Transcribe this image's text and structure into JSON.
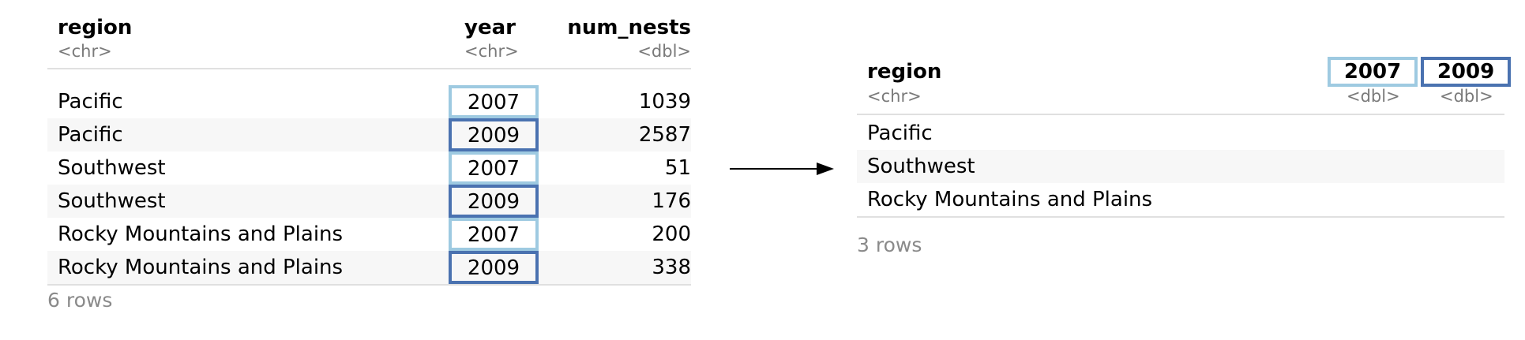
{
  "colors": {
    "light_box": "#9ecae1",
    "dark_box": "#4a72b0",
    "arrow": "#000000"
  },
  "left_table": {
    "columns": [
      {
        "name": "region",
        "type": "<chr>"
      },
      {
        "name": "year",
        "type": "<chr>"
      },
      {
        "name": "num_nests",
        "type": "<dbl>"
      }
    ],
    "rows": [
      {
        "region": "Pacific",
        "year": "2007",
        "num_nests": "1039",
        "year_style": "light"
      },
      {
        "region": "Pacific",
        "year": "2009",
        "num_nests": "2587",
        "year_style": "dark"
      },
      {
        "region": "Southwest",
        "year": "2007",
        "num_nests": "51",
        "year_style": "light"
      },
      {
        "region": "Southwest",
        "year": "2009",
        "num_nests": "176",
        "year_style": "dark"
      },
      {
        "region": "Rocky Mountains and Plains",
        "year": "2007",
        "num_nests": "200",
        "year_style": "light"
      },
      {
        "region": "Rocky Mountains and Plains",
        "year": "2009",
        "num_nests": "338",
        "year_style": "dark"
      }
    ],
    "row_count": "6 rows"
  },
  "right_table": {
    "columns": [
      {
        "name": "region",
        "type": "<chr>"
      },
      {
        "name": "2007",
        "type": "<dbl>",
        "style": "light"
      },
      {
        "name": "2009",
        "type": "<dbl>",
        "style": "dark"
      }
    ],
    "rows": [
      {
        "region": "Pacific"
      },
      {
        "region": "Southwest"
      },
      {
        "region": "Rocky Mountains and Plains"
      }
    ],
    "row_count": "3 rows"
  }
}
